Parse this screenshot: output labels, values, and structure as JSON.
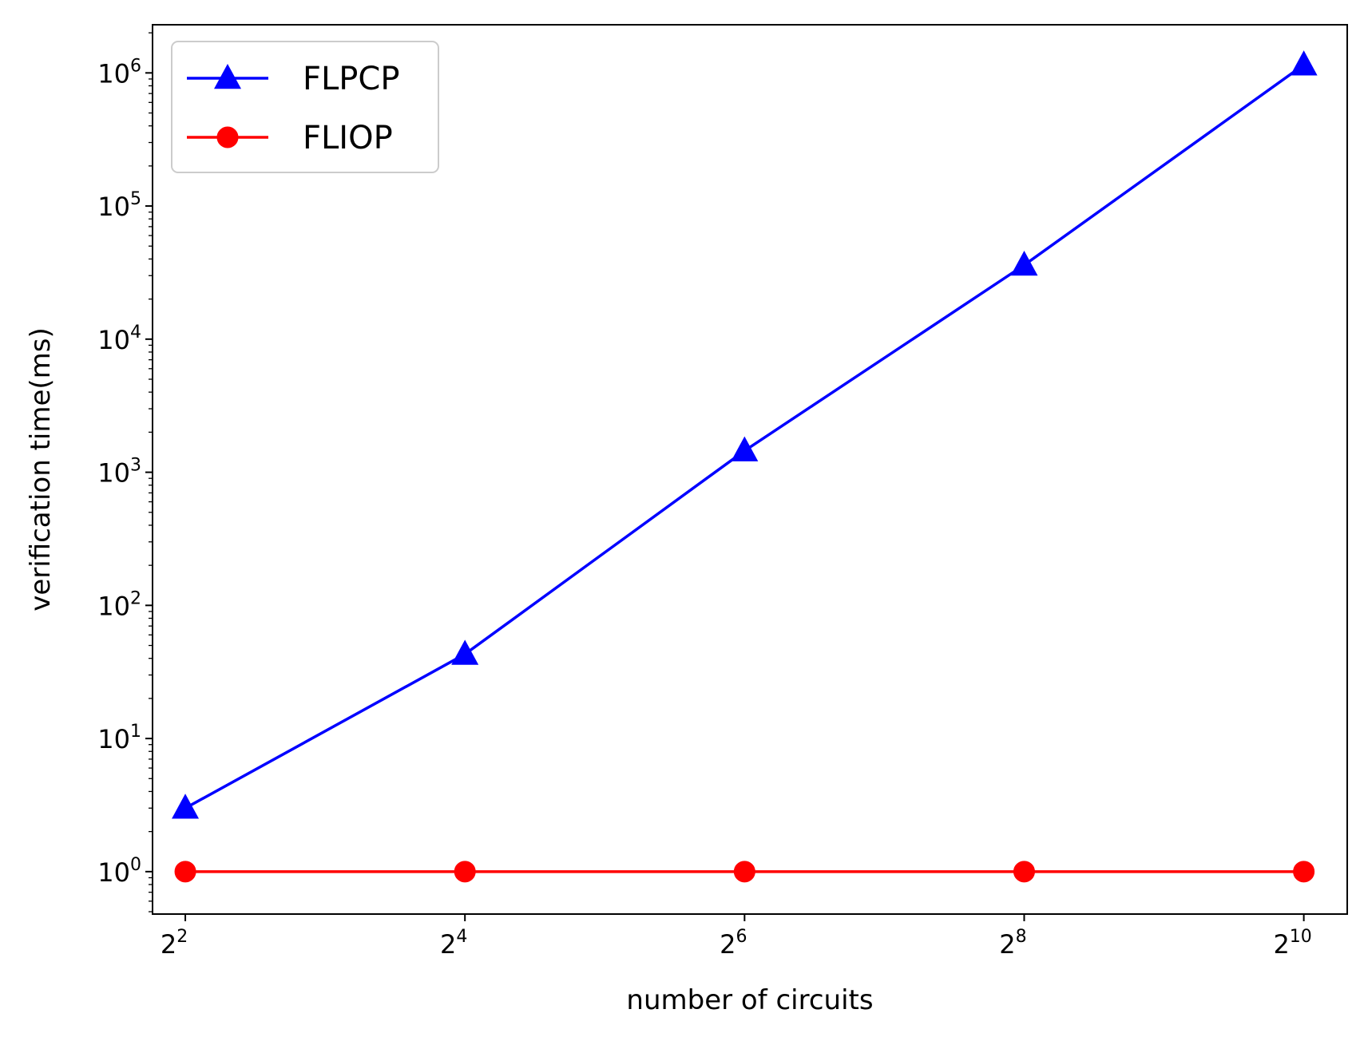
{
  "chart_data": {
    "type": "line",
    "title": "",
    "xlabel": "number of circuits",
    "ylabel": "verification time(ms)",
    "x_scale": "log2",
    "y_scale": "log10",
    "x": [
      4,
      16,
      64,
      256,
      1024
    ],
    "x_tick_labels": [
      {
        "base": "2",
        "exp": "2"
      },
      {
        "base": "2",
        "exp": "4"
      },
      {
        "base": "2",
        "exp": "6"
      },
      {
        "base": "2",
        "exp": "8"
      },
      {
        "base": "2",
        "exp": "10"
      }
    ],
    "y_tick_labels": [
      {
        "base": "10",
        "exp": "0"
      },
      {
        "base": "10",
        "exp": "1"
      },
      {
        "base": "10",
        "exp": "2"
      },
      {
        "base": "10",
        "exp": "3"
      },
      {
        "base": "10",
        "exp": "4"
      },
      {
        "base": "10",
        "exp": "5"
      },
      {
        "base": "10",
        "exp": "6"
      }
    ],
    "xlim": [
      3.4,
      1270
    ],
    "ylim": [
      0.48,
      2300000
    ],
    "grid": false,
    "legend_position": "top-left",
    "series": [
      {
        "name": "FLPCP",
        "color": "#0000ff",
        "marker": "triangle",
        "values": [
          3,
          43,
          1450,
          36000,
          1150000
        ]
      },
      {
        "name": "FLIOP",
        "color": "#ff0000",
        "marker": "circle",
        "values": [
          1,
          1,
          1,
          1,
          1
        ]
      }
    ]
  }
}
